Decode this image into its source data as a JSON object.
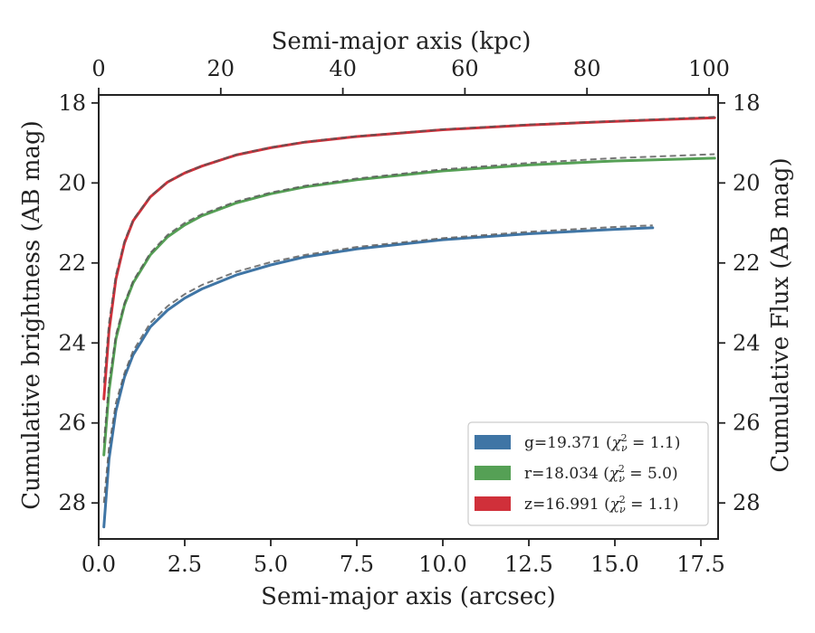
{
  "chart_data": {
    "type": "line",
    "xlabel": "Semi-major axis (arcsec)",
    "ylabel": "Cumulative brightness (AB mag)",
    "top_xlabel": "Semi-major axis (kpc)",
    "right_ylabel": "Cumulative Flux (AB mag)",
    "xlim": [
      0,
      18
    ],
    "ylim": [
      28.9,
      17.8
    ],
    "y_inverted": true,
    "top_xlim": [
      0,
      100
    ],
    "x_ticks": [
      "0.0",
      "2.5",
      "5.0",
      "7.5",
      "10.0",
      "12.5",
      "15.0",
      "17.5"
    ],
    "x_tick_values": [
      0,
      2.5,
      5,
      7.5,
      10,
      12.5,
      15,
      17.5
    ],
    "y_ticks": [
      "18",
      "20",
      "22",
      "24",
      "26",
      "28"
    ],
    "y_tick_values": [
      18,
      20,
      22,
      24,
      26,
      28
    ],
    "top_x_ticks": [
      "0",
      "20",
      "40",
      "60",
      "80",
      "100"
    ],
    "top_x_tick_values": [
      0,
      20,
      40,
      60,
      80,
      100
    ],
    "grid": false,
    "legend_position": "lower-right",
    "series": [
      {
        "name": "z=16.991 (χν² = 1.1)",
        "label_main": "z=16.991 (",
        "label_sym": "χ",
        "label_sub": "ν",
        "label_sup": "2",
        "label_rest": " = 1.1)",
        "color": "#d0303a",
        "x": [
          0.15,
          0.3,
          0.5,
          0.75,
          1.0,
          1.5,
          2.0,
          2.5,
          3.0,
          4.0,
          5.0,
          6.0,
          7.5,
          10.0,
          12.5,
          15.0,
          17.9
        ],
        "y": [
          25.4,
          23.7,
          22.4,
          21.5,
          20.95,
          20.35,
          19.98,
          19.75,
          19.58,
          19.3,
          19.12,
          18.98,
          18.84,
          18.67,
          18.55,
          18.46,
          18.37
        ],
        "model": [
          25.0,
          23.5,
          22.3,
          21.45,
          20.92,
          20.33,
          19.97,
          19.74,
          19.57,
          19.29,
          19.11,
          18.97,
          18.83,
          18.66,
          18.54,
          18.45,
          18.35
        ]
      },
      {
        "name": "r=18.034 (χν² = 5.0)",
        "label_main": "r=18.034 (",
        "label_sym": "χ",
        "label_sub": "ν",
        "label_sup": "2",
        "label_rest": " = 5.0)",
        "color": "#55a055",
        "x": [
          0.15,
          0.3,
          0.5,
          0.75,
          1.0,
          1.5,
          2.0,
          2.5,
          3.0,
          4.0,
          5.0,
          6.0,
          7.5,
          10.0,
          12.5,
          15.0,
          17.9
        ],
        "y": [
          26.8,
          25.2,
          23.9,
          23.05,
          22.5,
          21.8,
          21.35,
          21.05,
          20.82,
          20.5,
          20.27,
          20.1,
          19.92,
          19.7,
          19.55,
          19.45,
          19.38
        ],
        "model": [
          26.5,
          25.0,
          23.8,
          23.0,
          22.45,
          21.75,
          21.3,
          21.0,
          20.78,
          20.46,
          20.24,
          20.07,
          19.89,
          19.66,
          19.5,
          19.38,
          19.28
        ]
      },
      {
        "name": "g=19.371 (χν² = 1.1)",
        "label_main": "g=19.371 (",
        "label_sym": "χ",
        "label_sub": "ν",
        "label_sup": "2",
        "label_rest": " = 1.1)",
        "color": "#3f75a5",
        "x": [
          0.15,
          0.3,
          0.5,
          0.75,
          1.0,
          1.5,
          2.0,
          2.5,
          3.0,
          4.0,
          5.0,
          6.0,
          7.5,
          10.0,
          12.5,
          15.0,
          16.1
        ],
        "y": [
          28.6,
          26.9,
          25.7,
          24.85,
          24.3,
          23.6,
          23.18,
          22.88,
          22.65,
          22.3,
          22.05,
          21.85,
          21.65,
          21.42,
          21.27,
          21.16,
          21.12
        ],
        "model": [
          28.0,
          26.6,
          25.5,
          24.75,
          24.2,
          23.5,
          23.08,
          22.78,
          22.55,
          22.22,
          21.98,
          21.8,
          21.6,
          21.38,
          21.22,
          21.1,
          21.06
        ]
      }
    ],
    "legend_order": [
      2,
      1,
      0
    ]
  }
}
